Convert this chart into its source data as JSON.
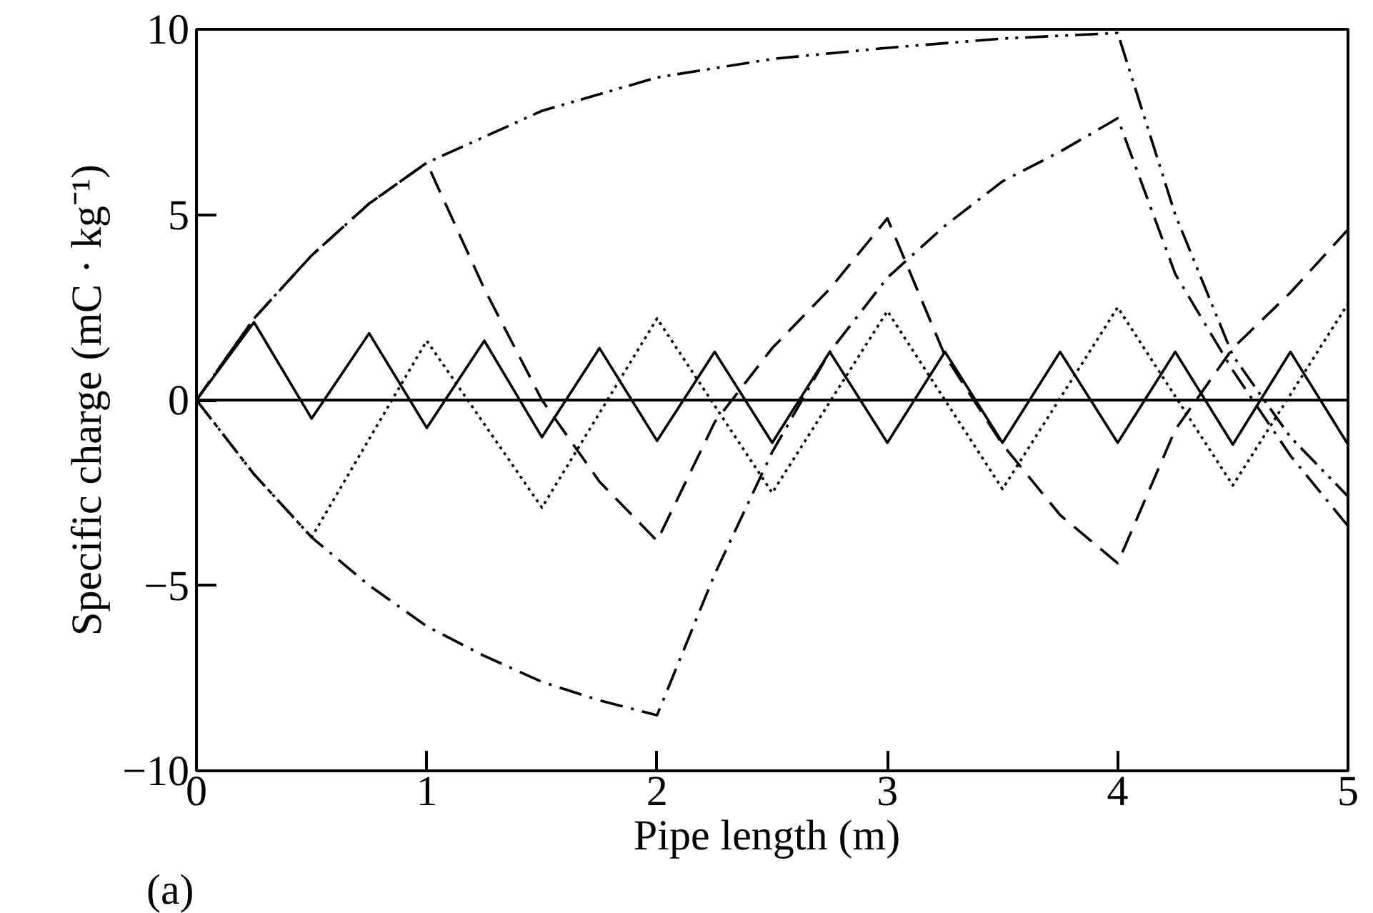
{
  "chart_data": {
    "type": "line",
    "xlabel": "Pipe length  (m)",
    "ylabel": "Specific charge (mC · kg⁻¹)",
    "xlim": [
      0,
      5
    ],
    "ylim": [
      -10,
      10
    ],
    "xticks": [
      0,
      1,
      2,
      3,
      4,
      5
    ],
    "yticks": [
      {
        "value": -10,
        "label": "−10"
      },
      {
        "value": -5,
        "label": "−5"
      },
      0,
      5,
      10
    ],
    "grid": false,
    "ref_lines": [
      {
        "axis": "y",
        "value": 0,
        "color": "#000000",
        "line_style": "solid"
      }
    ],
    "annotations": [
      "(a)"
    ],
    "series": [
      {
        "color": "#000000",
        "line_style": "solid",
        "x": [
          0,
          0.25,
          0.5,
          0.75,
          1,
          1.25,
          1.5,
          1.75,
          2,
          2.25,
          2.5,
          2.75,
          3,
          3.25,
          3.5,
          3.75,
          4,
          4.25,
          4.5,
          4.75,
          5
        ],
        "values": [
          0,
          2.1,
          -0.5,
          1.8,
          -0.75,
          1.6,
          -1.0,
          1.4,
          -1.1,
          1.3,
          -1.15,
          1.3,
          -1.15,
          1.3,
          -1.15,
          1.3,
          -1.15,
          1.3,
          -1.2,
          1.3,
          -1.2
        ]
      },
      {
        "color": "#000000",
        "line_style": "dotted",
        "x": [
          0,
          0.25,
          0.5,
          1,
          1.5,
          2,
          2.5,
          3,
          3.5,
          4,
          4.5,
          5
        ],
        "values": [
          0,
          -2.0,
          -3.7,
          1.6,
          -2.9,
          2.2,
          -2.5,
          2.4,
          -2.4,
          2.5,
          -2.3,
          2.6
        ]
      },
      {
        "color": "#000000",
        "line_style": "dashed",
        "x": [
          0,
          0.25,
          0.5,
          0.75,
          1,
          1.25,
          1.5,
          1.75,
          2,
          2.25,
          2.5,
          2.75,
          3,
          3.25,
          3.5,
          3.75,
          4,
          4.25,
          4.5,
          4.75,
          5
        ],
        "values": [
          0,
          2.2,
          3.9,
          5.3,
          6.4,
          3.0,
          0,
          -2.2,
          -3.8,
          -0.6,
          1.4,
          3.0,
          4.9,
          1.2,
          -1.2,
          -3.1,
          -4.4,
          -0.8,
          1.4,
          2.9,
          4.6
        ]
      },
      {
        "color": "#000000",
        "line_style": "dashdot",
        "x": [
          0,
          0.25,
          0.5,
          0.75,
          1,
          1.25,
          1.5,
          1.75,
          2,
          2.25,
          2.5,
          2.75,
          3,
          3.25,
          3.5,
          3.75,
          4,
          4.25,
          4.5,
          4.75,
          5
        ],
        "values": [
          0,
          -2.0,
          -3.7,
          -5.0,
          -6.1,
          -6.9,
          -7.6,
          -8.1,
          -8.5,
          -4.7,
          -1.4,
          1.3,
          3.3,
          4.7,
          5.9,
          6.7,
          7.6,
          3.4,
          0.8,
          -1.5,
          -3.4
        ]
      },
      {
        "color": "#000000",
        "line_style": "dashdotdot",
        "x": [
          0,
          0.25,
          0.5,
          0.75,
          1,
          1.5,
          2,
          2.5,
          3,
          3.5,
          4,
          4.25,
          4.5,
          4.75,
          5
        ],
        "values": [
          0,
          2.2,
          3.9,
          5.3,
          6.4,
          7.8,
          8.7,
          9.2,
          9.5,
          9.75,
          9.9,
          5.0,
          1.2,
          -1.0,
          -2.6
        ]
      }
    ]
  }
}
